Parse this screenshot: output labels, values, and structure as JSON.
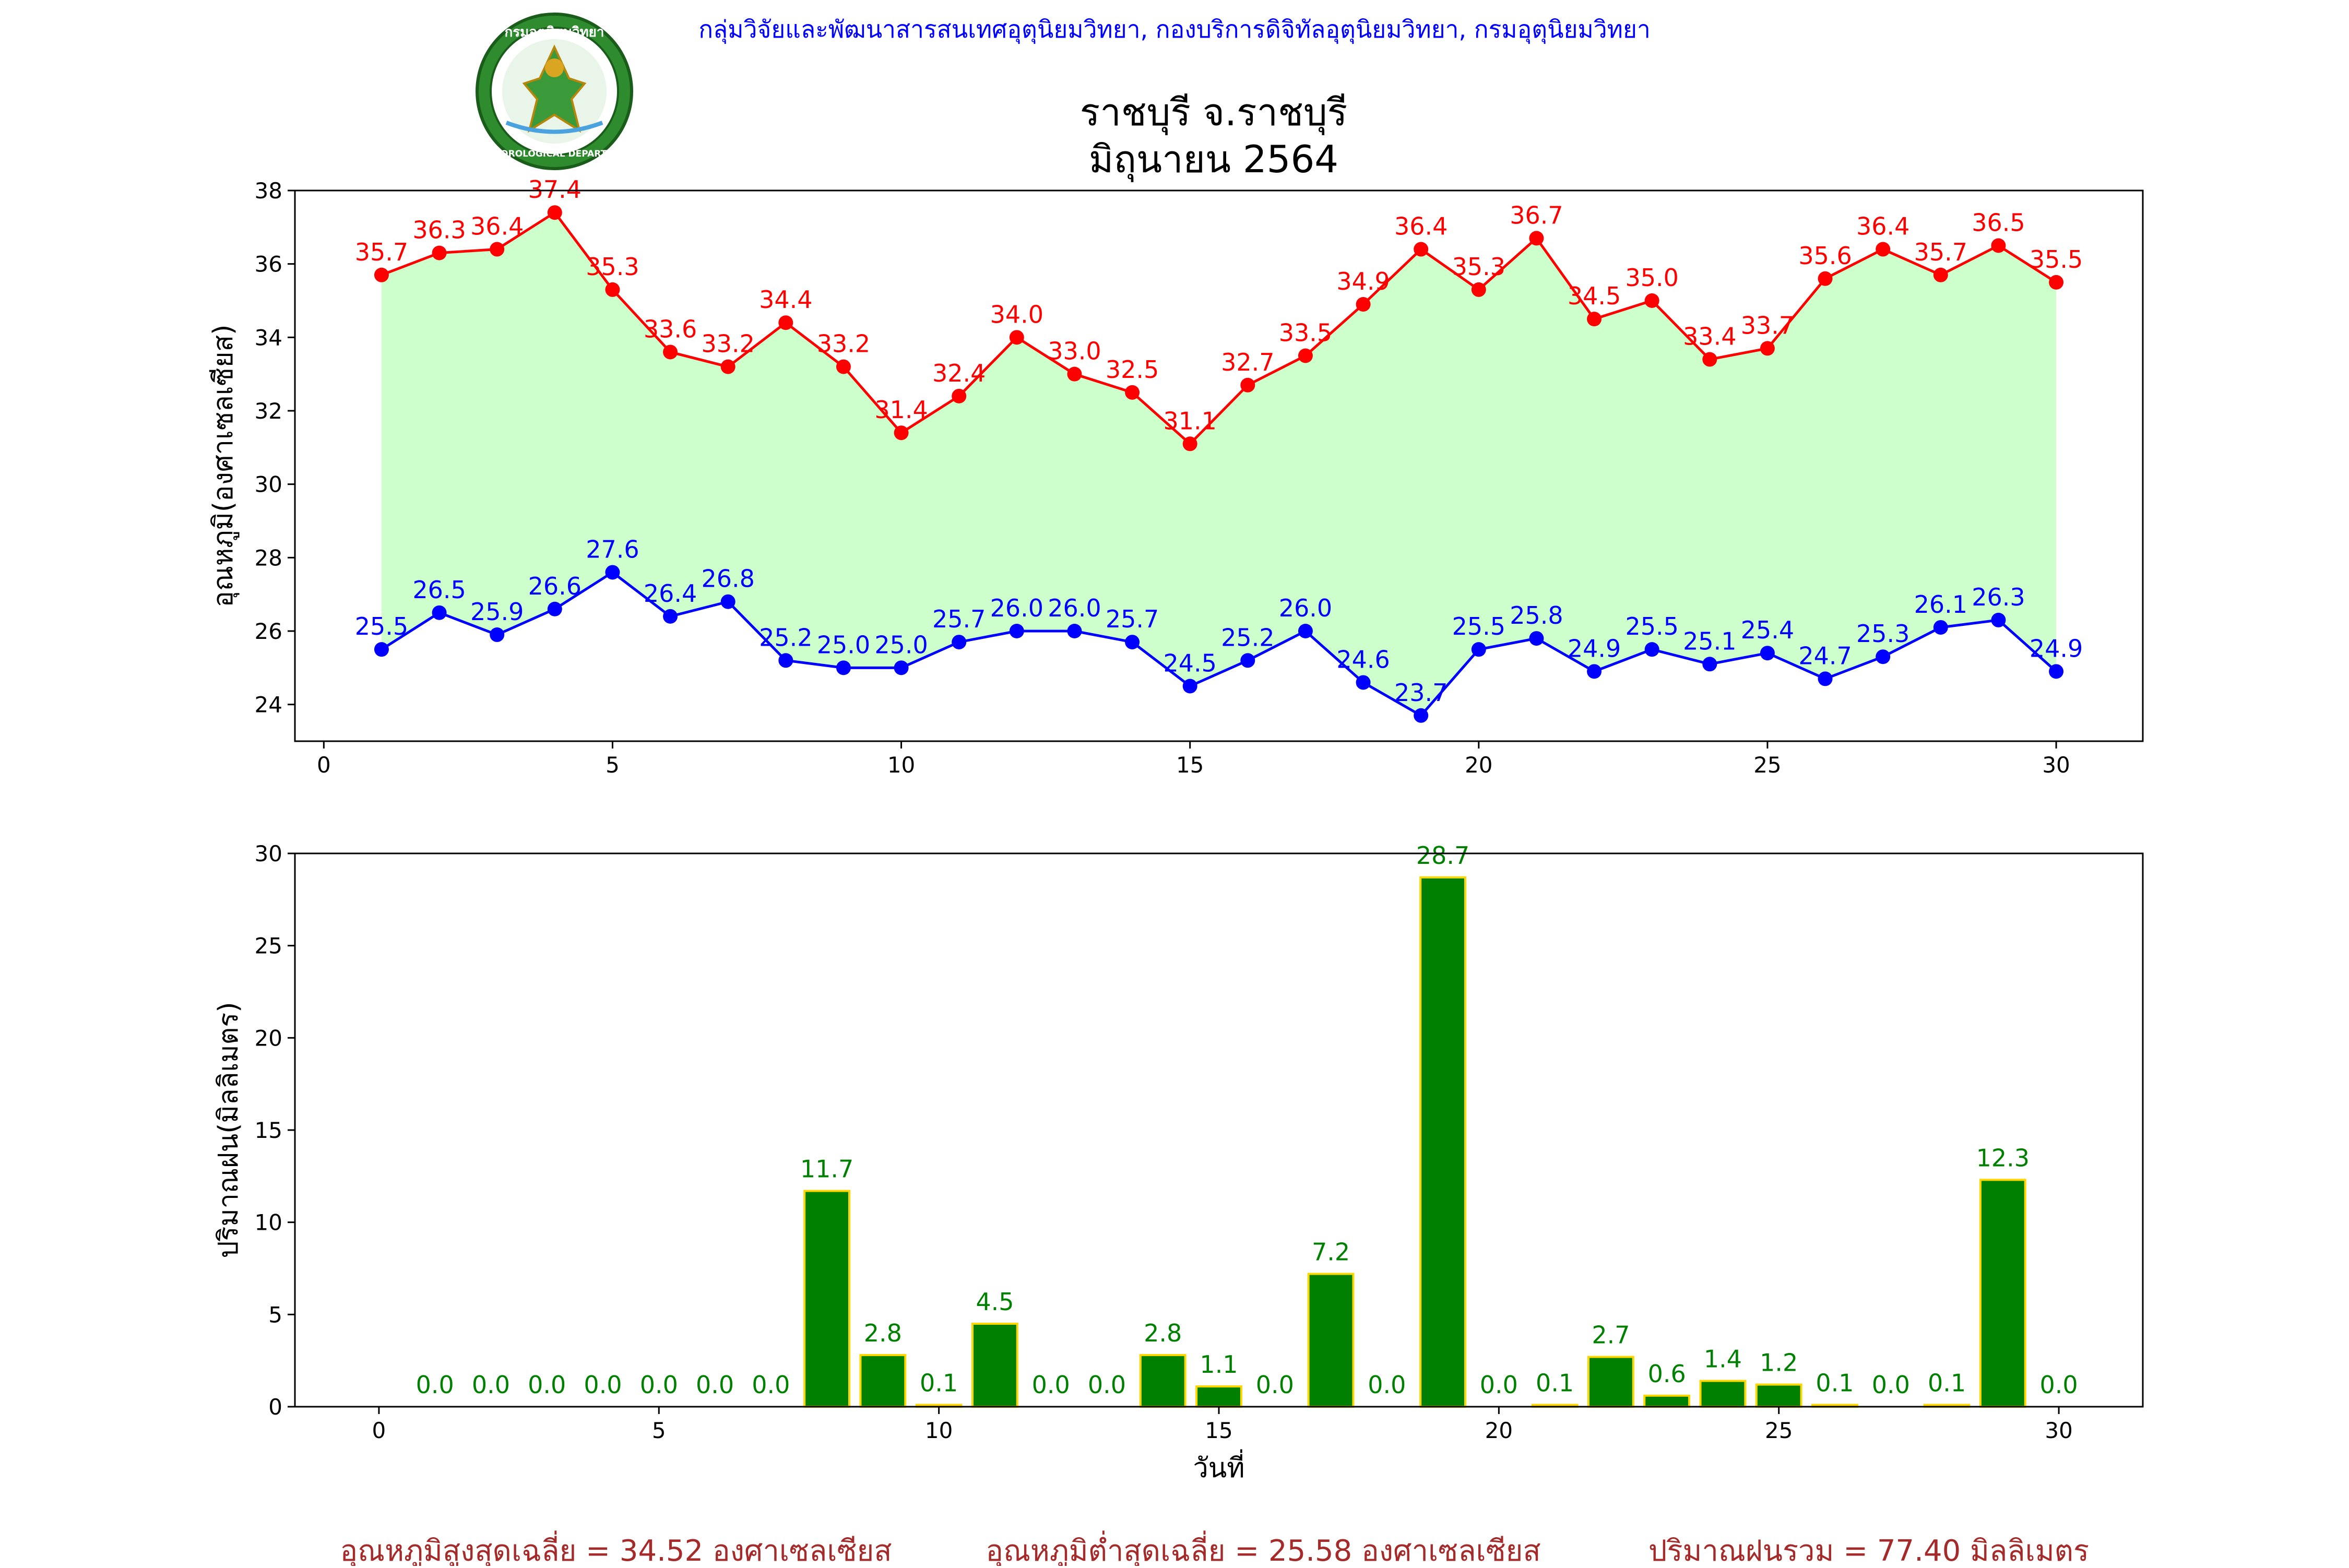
{
  "header": {
    "agency_line": "กลุ่มวิจัยและพัฒนาสารสนเทศอุตุนิยมวิทยา, กองบริการดิจิทัลอุตุนิยมวิทยา, กรมอุตุนิยมวิทยา",
    "logo_top_text": "กรมอุตุนิยมวิทยา",
    "logo_bottom_text": "METEOROLOGICAL DEPARTMENT",
    "title_line1": "ราชบุรี จ.ราชบุรี",
    "title_line2": "มิถุนายน 2564"
  },
  "colors": {
    "max_temp": "#ff0000",
    "min_temp": "#0000ff",
    "fill_between": "#ccffcc",
    "rain_bar": "#008000",
    "rain_bar_edge": "#ffd700",
    "rain_label": "#008000",
    "agency_text": "#0000ff",
    "summary_text": "#a52a2a"
  },
  "chart_data": [
    {
      "type": "line",
      "ylabel": "อุณหภูมิ(องศาเซลเซียส)",
      "xlabel": "",
      "xlim": [
        -0.5,
        31.5
      ],
      "ylim": [
        23.0,
        38.0
      ],
      "xticks": [
        0,
        5,
        10,
        15,
        20,
        25,
        30
      ],
      "yticks": [
        24,
        26,
        28,
        30,
        32,
        34,
        36,
        38
      ],
      "x": [
        1,
        2,
        3,
        4,
        5,
        6,
        7,
        8,
        9,
        10,
        11,
        12,
        13,
        14,
        15,
        16,
        17,
        18,
        19,
        20,
        21,
        22,
        23,
        24,
        25,
        26,
        27,
        28,
        29,
        30
      ],
      "series": [
        {
          "key": "max",
          "values": [
            35.7,
            36.3,
            36.4,
            37.4,
            35.3,
            33.6,
            33.2,
            34.4,
            33.2,
            31.4,
            32.4,
            34.0,
            33.0,
            32.5,
            31.1,
            32.7,
            33.5,
            34.9,
            36.4,
            35.3,
            36.7,
            34.5,
            35.0,
            33.4,
            33.7,
            35.6,
            36.4,
            35.7,
            36.5,
            35.5
          ]
        },
        {
          "key": "min",
          "values": [
            25.5,
            26.5,
            25.9,
            26.6,
            27.6,
            26.4,
            26.8,
            25.2,
            25.0,
            25.0,
            25.7,
            26.0,
            26.0,
            25.7,
            24.5,
            25.2,
            26.0,
            24.6,
            23.7,
            25.5,
            25.8,
            24.9,
            25.5,
            25.1,
            25.4,
            24.7,
            25.3,
            26.1,
            26.3,
            24.9
          ]
        }
      ],
      "fill_between": true
    },
    {
      "type": "bar",
      "ylabel": "ปริมาณฝน(มิลลิเมตร)",
      "xlabel": "วันที่",
      "xlim": [
        -1.5,
        31.5
      ],
      "ylim": [
        0,
        30
      ],
      "xticks": [
        0,
        5,
        10,
        15,
        20,
        25,
        30
      ],
      "yticks": [
        0,
        5,
        10,
        15,
        20,
        25,
        30
      ],
      "x": [
        1,
        2,
        3,
        4,
        5,
        6,
        7,
        8,
        9,
        10,
        11,
        12,
        13,
        14,
        15,
        16,
        17,
        18,
        19,
        20,
        21,
        22,
        23,
        24,
        25,
        26,
        27,
        28,
        29,
        30
      ],
      "values": [
        0.0,
        0.0,
        0.0,
        0.0,
        0.0,
        0.0,
        0.0,
        11.7,
        2.8,
        0.1,
        4.5,
        0.0,
        0.0,
        2.8,
        1.1,
        0.0,
        7.2,
        0.0,
        28.7,
        0.0,
        0.1,
        2.7,
        0.6,
        1.4,
        1.2,
        0.1,
        0.0,
        0.1,
        12.3,
        0.0
      ]
    }
  ],
  "summary": {
    "avg_max": "อุณหภูมิสูงสุดเฉลี่ย = 34.52 องศาเซลเซียส",
    "avg_min": "อุณหภูมิต่ำสุดเฉลี่ย = 25.58 องศาเซลเซียส",
    "total_rain": "ปริมาณฝนรวม = 77.40 มิลลิเมตร"
  }
}
